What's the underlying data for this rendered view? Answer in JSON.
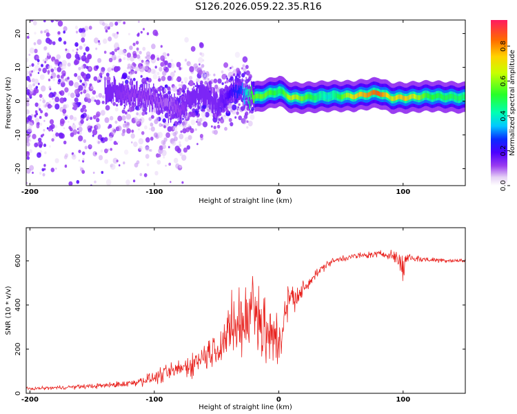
{
  "title": "S126.2026.059.22.35.R16",
  "colors": {
    "snr_line": "#e8201c",
    "frame": "#000000"
  },
  "chart_data": [
    {
      "type": "heatmap",
      "xlabel": "Height of straight line (km)",
      "ylabel": "Frequency (Hz)",
      "xlim": [
        -203,
        150
      ],
      "ylim": [
        -25,
        24
      ],
      "xticks": [
        -200,
        -100,
        0,
        100
      ],
      "xtick_labels": [
        "-200",
        "-100",
        "0",
        "100"
      ],
      "yticks": [
        -20,
        -10,
        0,
        10,
        20
      ],
      "ytick_labels": [
        "-20",
        "-10",
        "0",
        "10",
        "20"
      ],
      "colorbar": {
        "label": "Normalized spectral amplitude",
        "range": [
          0,
          0.95
        ],
        "ticks": [
          0.0,
          0.2,
          0.4,
          0.6,
          0.8
        ],
        "tick_labels": [
          "0.0",
          "0.2",
          "0.4",
          "0.6",
          "0.8"
        ]
      },
      "ridge": {
        "x": [
          -135,
          -120,
          -105,
          -90,
          -80,
          -70,
          -60,
          -50,
          -40,
          -30,
          -20,
          -10,
          0,
          10,
          20,
          40,
          60,
          80,
          90,
          100,
          120,
          150
        ],
        "freq": [
          3,
          2,
          1,
          -1,
          -3,
          1,
          2,
          -1,
          2,
          3,
          1,
          2,
          3,
          1,
          1,
          1.5,
          1.5,
          2.5,
          1,
          1,
          1.5,
          1
        ],
        "amplitude": [
          0.15,
          0.12,
          0.12,
          0.1,
          0.12,
          0.15,
          0.15,
          0.15,
          0.2,
          0.3,
          0.6,
          0.6,
          0.5,
          0.7,
          0.6,
          0.4,
          0.75,
          0.9,
          0.7,
          0.8,
          0.55,
          0.5
        ]
      }
    },
    {
      "type": "line",
      "xlabel": "Height of straight line (km)",
      "ylabel": "SNR (10 * v/v)",
      "xlim": [
        -203,
        150
      ],
      "ylim": [
        0,
        750
      ],
      "xticks": [
        -200,
        -100,
        0,
        100
      ],
      "xtick_labels": [
        "-200",
        "-100",
        "0",
        "100"
      ],
      "yticks": [
        0,
        200,
        400,
        600
      ],
      "ytick_labels": [
        "0",
        "200",
        "400",
        "600"
      ],
      "x": [
        -203,
        -180,
        -160,
        -140,
        -120,
        -100,
        -90,
        -80,
        -70,
        -60,
        -50,
        -40,
        -30,
        -25,
        -20,
        -15,
        -10,
        -5,
        0,
        5,
        10,
        15,
        20,
        25,
        30,
        40,
        50,
        60,
        70,
        80,
        90,
        95,
        98,
        100,
        103,
        110,
        120,
        150
      ],
      "values": [
        20,
        25,
        30,
        35,
        45,
        70,
        90,
        110,
        130,
        170,
        210,
        260,
        300,
        330,
        380,
        330,
        270,
        260,
        240,
        350,
        460,
        420,
        470,
        510,
        540,
        590,
        610,
        620,
        625,
        630,
        630,
        610,
        590,
        560,
        620,
        610,
        605,
        600
      ],
      "noise": [
        8,
        10,
        12,
        15,
        20,
        35,
        45,
        55,
        65,
        80,
        110,
        140,
        180,
        200,
        220,
        220,
        220,
        200,
        170,
        120,
        90,
        70,
        40,
        30,
        25,
        20,
        18,
        18,
        18,
        20,
        25,
        40,
        70,
        80,
        40,
        20,
        15,
        12
      ]
    }
  ]
}
